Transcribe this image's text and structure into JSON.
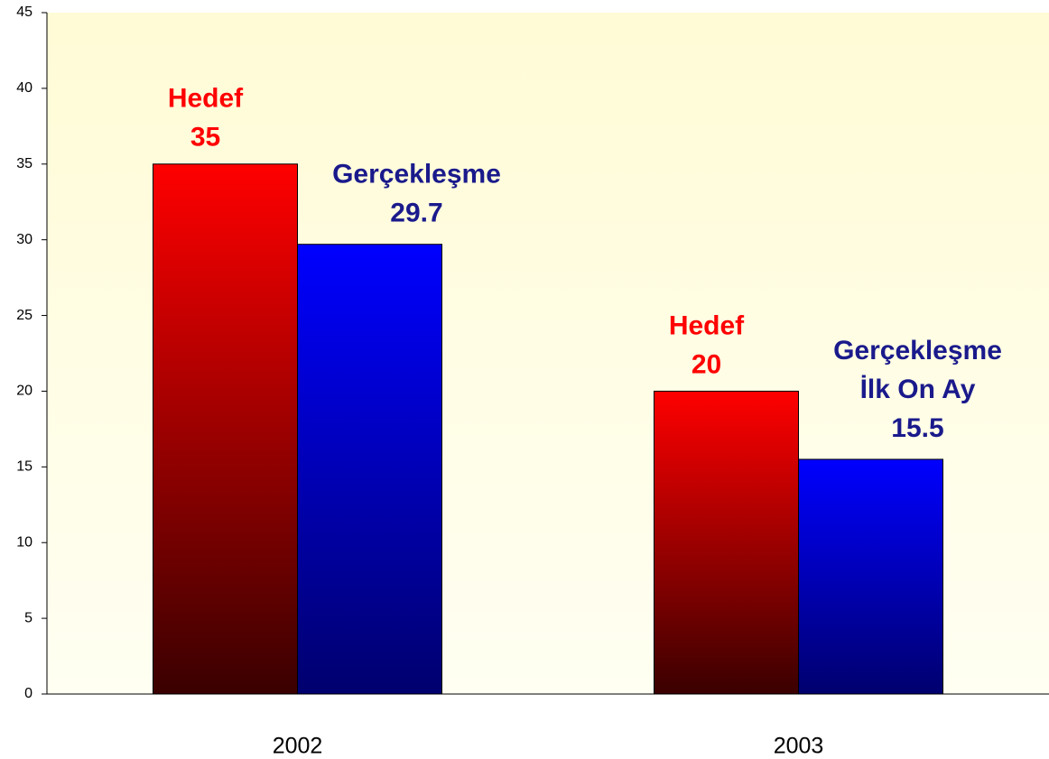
{
  "chart_data": {
    "type": "bar",
    "categories": [
      "2002",
      "2003"
    ],
    "series": [
      {
        "name": "Hedef",
        "color": "#ff0000",
        "values": [
          35,
          20
        ]
      },
      {
        "name": "Gerçekleşme",
        "color": "#0000ff",
        "values": [
          29.7,
          15.5
        ]
      }
    ],
    "annotations": [
      {
        "text": "İlk On Ay",
        "series": 1,
        "category": 1
      }
    ],
    "ylim": [
      0,
      45
    ],
    "yticks": [
      0,
      5,
      10,
      15,
      20,
      25,
      30,
      35,
      40,
      45
    ],
    "grid": false
  }
}
